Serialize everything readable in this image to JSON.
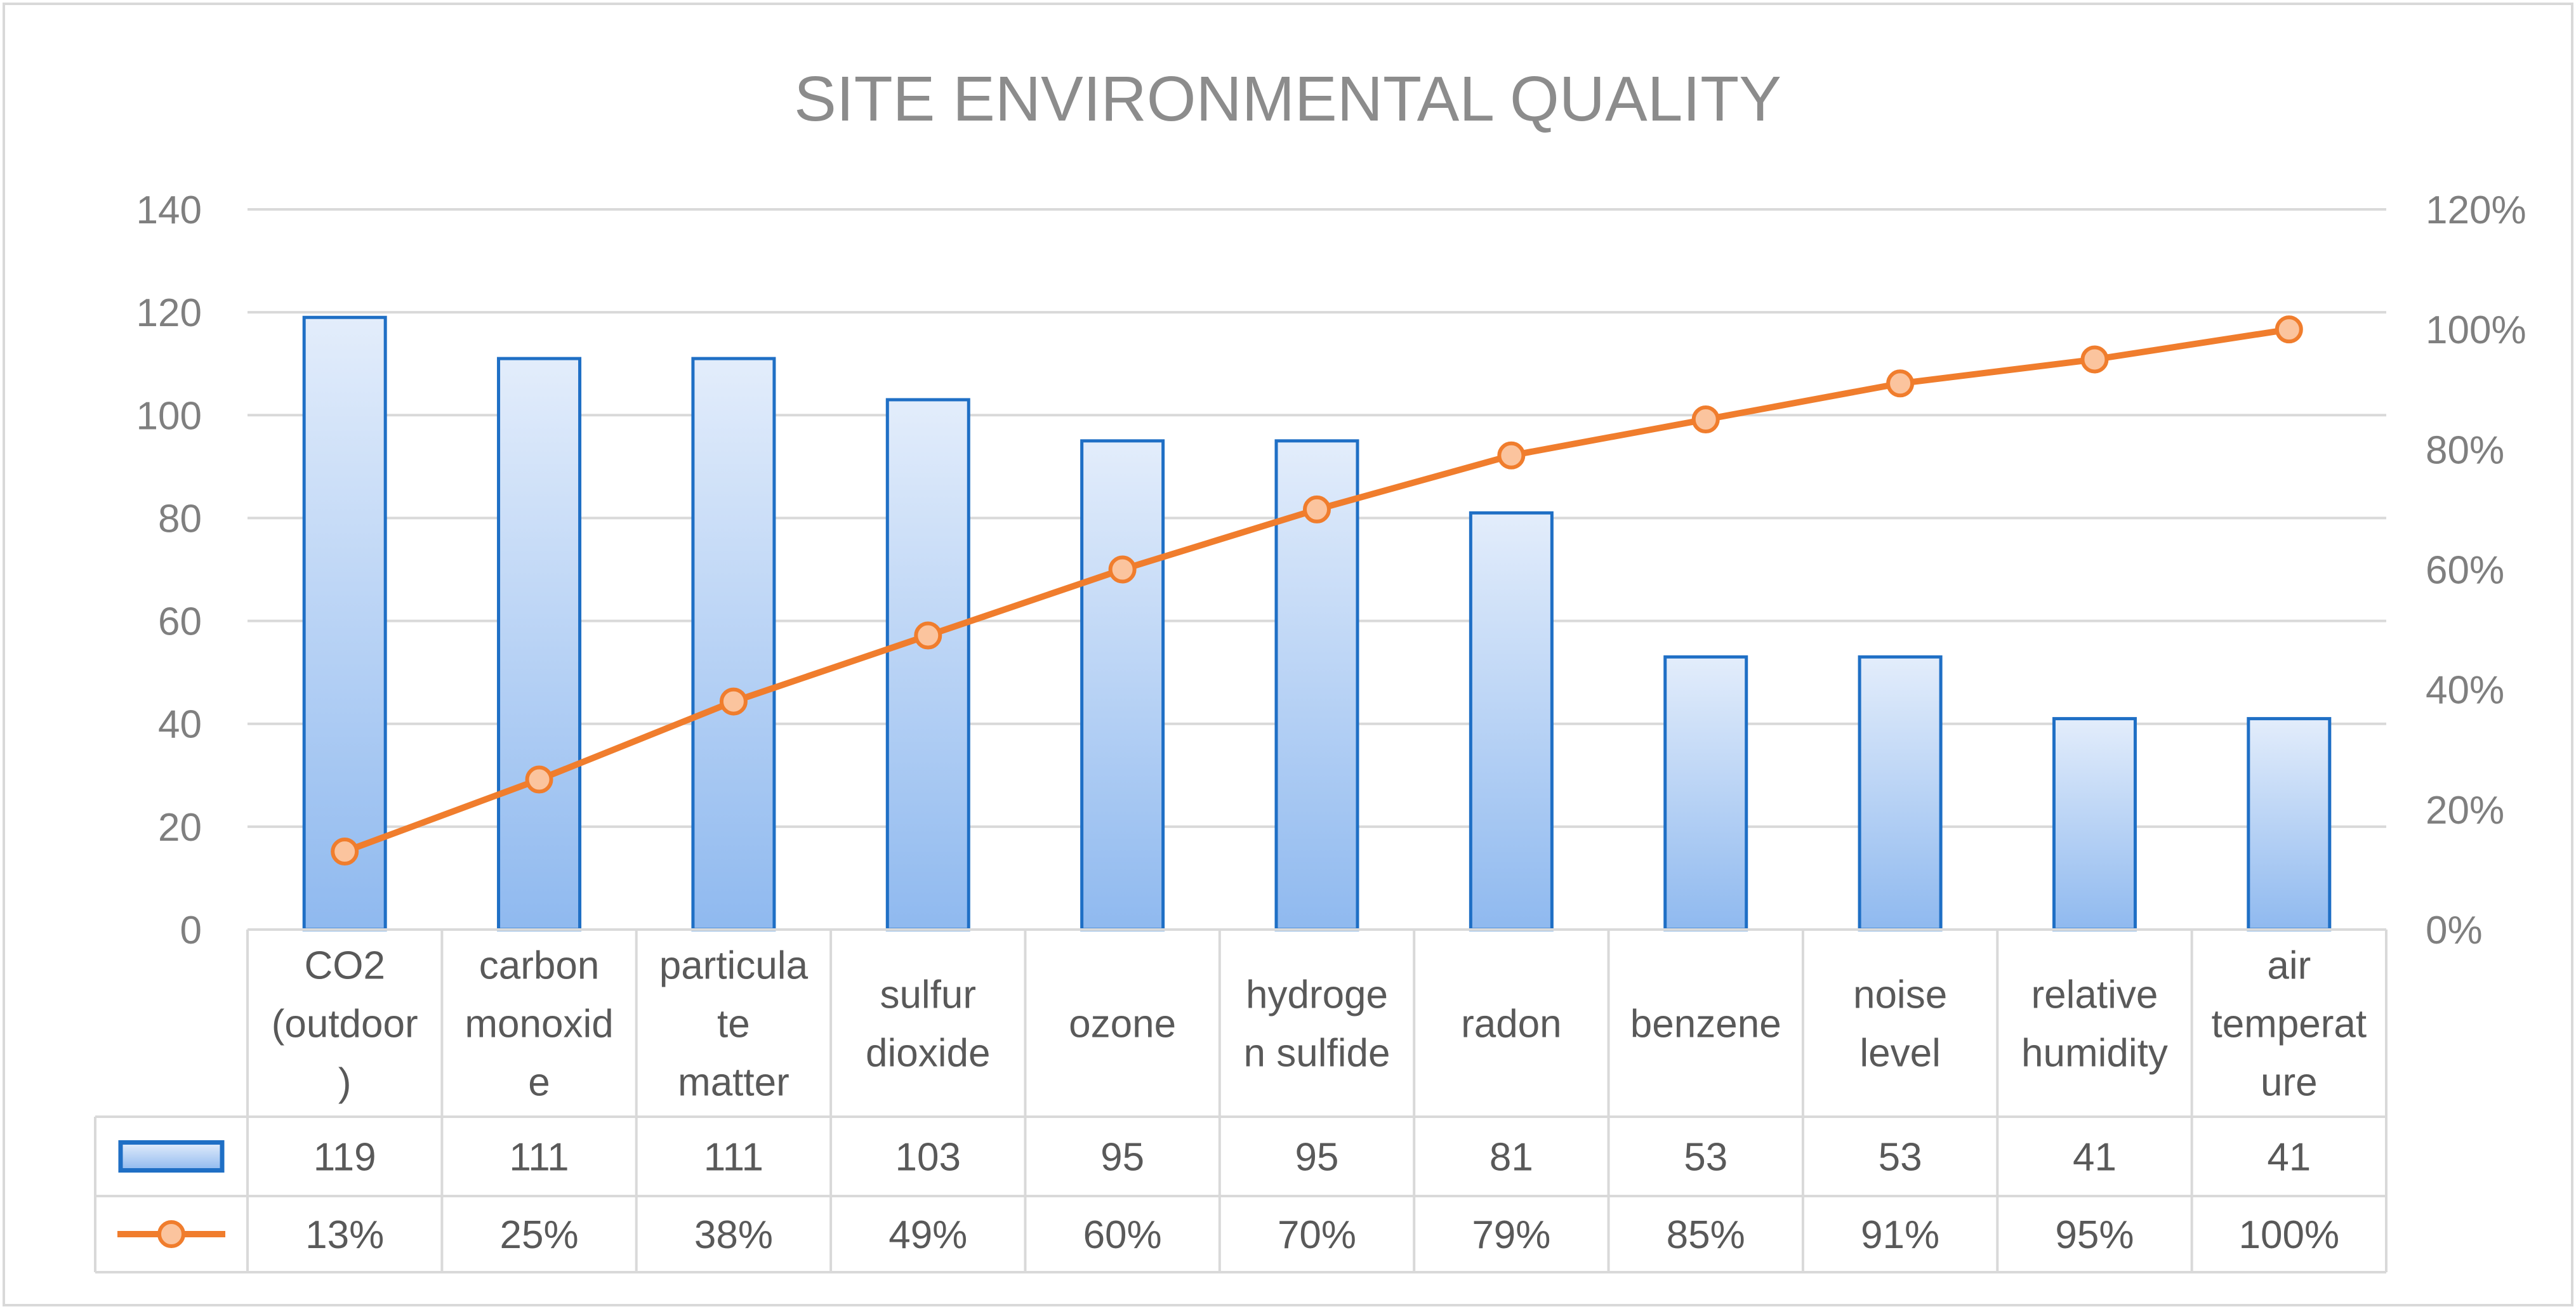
{
  "chart_data": {
    "type": "bar",
    "title": "SITE ENVIRONMENTAL QUALITY",
    "categories": [
      [
        "CO2",
        "(outdoor",
        ")"
      ],
      [
        "carbon",
        "monoxid",
        "e"
      ],
      [
        "particula",
        "te",
        "matter"
      ],
      [
        "sulfur",
        "dioxide"
      ],
      [
        "ozone"
      ],
      [
        "hydroge",
        "n sulfide"
      ],
      [
        "radon"
      ],
      [
        "benzene"
      ],
      [
        "noise",
        "level"
      ],
      [
        "relative",
        "humidity"
      ],
      [
        "air",
        "temperat",
        "ure"
      ]
    ],
    "series": [
      {
        "type": "bar",
        "axis": "left",
        "values": [
          119,
          111,
          111,
          103,
          95,
          95,
          81,
          53,
          53,
          41,
          41
        ],
        "labels": [
          "119",
          "111",
          "111",
          "103",
          "95",
          "95",
          "81",
          "53",
          "53",
          "41",
          "41"
        ],
        "color": "#1f6fc5",
        "fill_top": "#e3edfb",
        "fill_bottom": "#8fb9ef"
      },
      {
        "type": "line",
        "axis": "right",
        "values": [
          13,
          25,
          38,
          49,
          60,
          70,
          79,
          85,
          91,
          95,
          100
        ],
        "labels": [
          "13%",
          "25%",
          "38%",
          "49%",
          "60%",
          "70%",
          "79%",
          "85%",
          "91%",
          "95%",
          "100%"
        ],
        "color": "#f07d2d",
        "marker_fill": "#fbc49e"
      }
    ],
    "y_left": {
      "min": 0,
      "max": 140,
      "ticks": [
        "0",
        "20",
        "40",
        "60",
        "80",
        "100",
        "120",
        "140"
      ]
    },
    "y_right": {
      "min": 0,
      "max": 120,
      "ticks": [
        "0%",
        "20%",
        "40%",
        "60%",
        "80%",
        "100%",
        "120%"
      ]
    },
    "grid": true,
    "legend": "data-table"
  }
}
